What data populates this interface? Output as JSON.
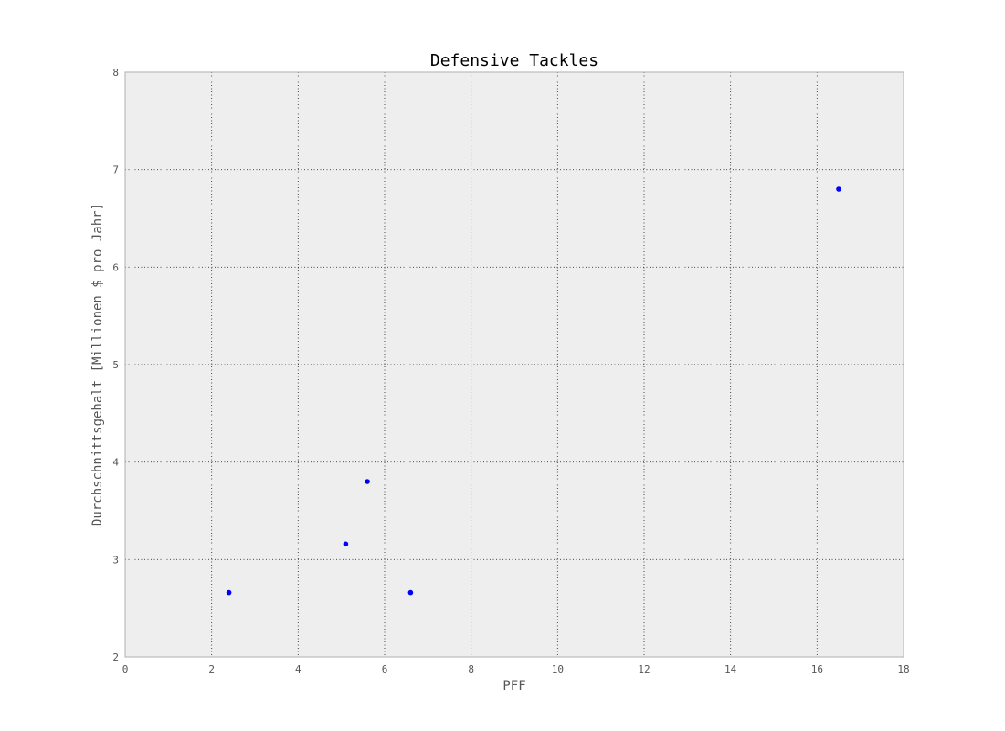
{
  "chart_data": {
    "type": "scatter",
    "title": "Defensive Tackles",
    "xlabel": "PFF",
    "ylabel": "Durchschnittsgehalt [Millionen $ pro Jahr]",
    "xlim": [
      0,
      18
    ],
    "ylim": [
      2,
      8
    ],
    "xticks": [
      0,
      2,
      4,
      6,
      8,
      10,
      12,
      14,
      16,
      18
    ],
    "yticks": [
      2,
      3,
      4,
      5,
      6,
      7,
      8
    ],
    "grid": true,
    "legend": "none",
    "series": [
      {
        "color": "#0000ff",
        "points": [
          {
            "x": 2.4,
            "y": 2.66
          },
          {
            "x": 5.1,
            "y": 3.16
          },
          {
            "x": 5.6,
            "y": 3.8
          },
          {
            "x": 6.6,
            "y": 2.66
          },
          {
            "x": 16.5,
            "y": 6.8
          }
        ]
      }
    ],
    "colors": {
      "plot_background": "#eeeeee",
      "frame": "#bcbcbc",
      "grid": "#333333"
    }
  }
}
